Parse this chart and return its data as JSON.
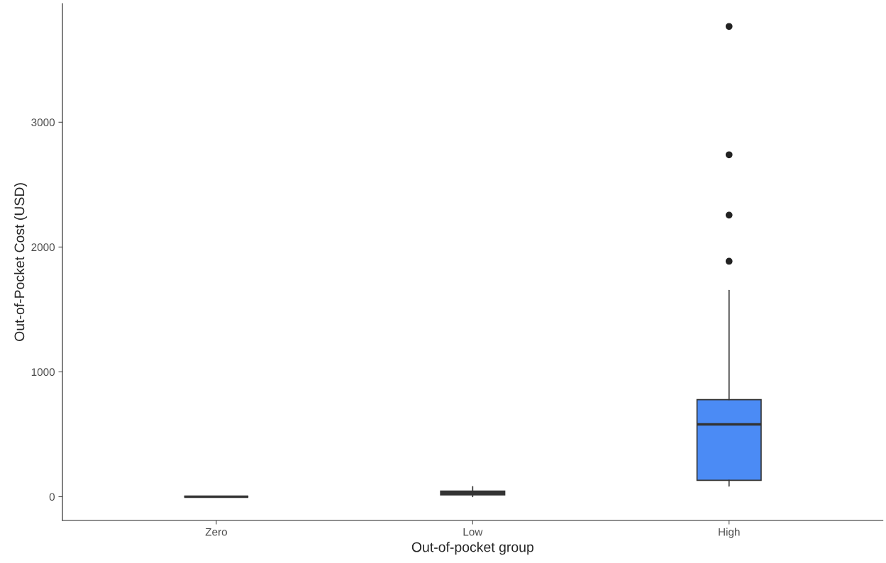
{
  "chart_data": {
    "type": "box",
    "xlabel": "Out-of-pocket group",
    "ylabel": "Out-of-Pocket Cost (USD)",
    "categories": [
      "Zero",
      "Low",
      "High"
    ],
    "colors": [
      "#333333",
      "#333333",
      "#4b8bf5"
    ],
    "boxes": [
      {
        "low": 0,
        "q1": 0,
        "median": 0,
        "q3": 0,
        "high": 0
      },
      {
        "low": 0,
        "q1": 15,
        "median": 30,
        "q3": 45,
        "high": 80
      },
      {
        "low": 85,
        "q1": 131,
        "median": 580,
        "q3": 778,
        "high": 1653,
        "outliers": [
          1886,
          2256,
          2739,
          3767
        ]
      }
    ],
    "ylim": [
      -190,
      3950
    ],
    "yticks": [
      0,
      1000,
      2000,
      3000
    ],
    "grid": false,
    "legend": false
  }
}
